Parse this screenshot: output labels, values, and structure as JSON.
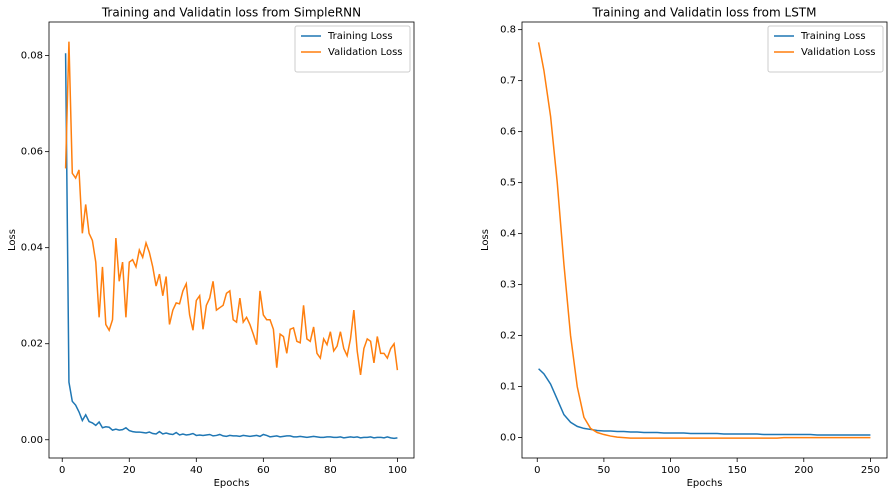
{
  "chart_data": [
    {
      "type": "line",
      "title": "Training and Validatin loss from SimpleRNN",
      "xlabel": "Epochs",
      "ylabel": "Loss",
      "x": [
        1,
        2,
        3,
        4,
        5,
        6,
        7,
        8,
        9,
        10,
        11,
        12,
        13,
        14,
        15,
        16,
        17,
        18,
        19,
        20,
        21,
        22,
        23,
        24,
        25,
        26,
        27,
        28,
        29,
        30,
        31,
        32,
        33,
        34,
        35,
        36,
        37,
        38,
        39,
        40,
        41,
        42,
        43,
        44,
        45,
        46,
        47,
        48,
        49,
        50,
        51,
        52,
        53,
        54,
        55,
        56,
        57,
        58,
        59,
        60,
        61,
        62,
        63,
        64,
        65,
        66,
        67,
        68,
        69,
        70,
        71,
        72,
        73,
        74,
        75,
        76,
        77,
        78,
        79,
        80,
        81,
        82,
        83,
        84,
        85,
        86,
        87,
        88,
        89,
        90,
        91,
        92,
        93,
        94,
        95,
        96,
        97,
        98,
        99,
        100
      ],
      "series": [
        {
          "name": "Training Loss",
          "color": "#1f77b4",
          "values": [
            0.0805,
            0.012,
            0.008,
            0.0072,
            0.0058,
            0.004,
            0.0052,
            0.0038,
            0.0035,
            0.003,
            0.0037,
            0.0025,
            0.0027,
            0.0026,
            0.002,
            0.0022,
            0.002,
            0.0021,
            0.0025,
            0.0019,
            0.0017,
            0.0016,
            0.0016,
            0.0015,
            0.0014,
            0.0016,
            0.0013,
            0.0012,
            0.0017,
            0.0012,
            0.0014,
            0.0012,
            0.0011,
            0.0015,
            0.001,
            0.0012,
            0.001,
            0.0011,
            0.0013,
            0.0009,
            0.001,
            0.0009,
            0.001,
            0.0011,
            0.0008,
            0.0009,
            0.0011,
            0.0008,
            0.0007,
            0.0009,
            0.0008,
            0.0008,
            0.0007,
            0.0009,
            0.0008,
            0.0007,
            0.0008,
            0.0009,
            0.0007,
            0.0011,
            0.0009,
            0.0006,
            0.0007,
            0.0008,
            0.0006,
            0.0007,
            0.0008,
            0.0008,
            0.0006,
            0.0006,
            0.0007,
            0.0006,
            0.0005,
            0.0006,
            0.0007,
            0.0006,
            0.0005,
            0.0005,
            0.0006,
            0.0006,
            0.0005,
            0.0005,
            0.0006,
            0.0004,
            0.0005,
            0.0006,
            0.0005,
            0.0006,
            0.0004,
            0.0005,
            0.0005,
            0.0006,
            0.0004,
            0.0005,
            0.0005,
            0.0004,
            0.0006,
            0.0004,
            0.0003,
            0.0004
          ]
        },
        {
          "name": "Validation Loss",
          "color": "#ff7f0e",
          "values": [
            0.0565,
            0.0829,
            0.0555,
            0.0545,
            0.0562,
            0.043,
            0.049,
            0.043,
            0.0415,
            0.037,
            0.0255,
            0.036,
            0.024,
            0.0228,
            0.025,
            0.042,
            0.033,
            0.037,
            0.0255,
            0.037,
            0.0375,
            0.036,
            0.0395,
            0.038,
            0.041,
            0.039,
            0.036,
            0.032,
            0.0345,
            0.03,
            0.034,
            0.024,
            0.027,
            0.0285,
            0.0283,
            0.031,
            0.0325,
            0.026,
            0.0228,
            0.029,
            0.03,
            0.023,
            0.028,
            0.0295,
            0.033,
            0.027,
            0.0275,
            0.028,
            0.0305,
            0.031,
            0.025,
            0.0245,
            0.0295,
            0.0245,
            0.0255,
            0.024,
            0.022,
            0.0198,
            0.031,
            0.026,
            0.025,
            0.025,
            0.023,
            0.015,
            0.022,
            0.0215,
            0.018,
            0.023,
            0.0233,
            0.0205,
            0.0202,
            0.028,
            0.021,
            0.0205,
            0.0235,
            0.018,
            0.017,
            0.021,
            0.0198,
            0.0225,
            0.0185,
            0.0195,
            0.0225,
            0.019,
            0.0175,
            0.021,
            0.027,
            0.0185,
            0.0135,
            0.019,
            0.021,
            0.0205,
            0.016,
            0.0215,
            0.018,
            0.018,
            0.017,
            0.019,
            0.02,
            0.0145
          ]
        }
      ],
      "xlim": [
        -3.95,
        104.95
      ],
      "ylim": [
        -0.0038,
        0.087
      ],
      "xticks": [
        0,
        20,
        40,
        60,
        80,
        100
      ],
      "yticks": [
        {
          "value": 0,
          "label": "0.00"
        },
        0.02,
        0.04,
        0.06,
        0.08
      ],
      "legend": "upper right"
    },
    {
      "type": "line",
      "title": "Training and Validatin loss from LSTM",
      "xlabel": "Epochs",
      "ylabel": "Loss",
      "x": [
        1,
        5,
        10,
        15,
        20,
        25,
        30,
        35,
        40,
        45,
        50,
        55,
        60,
        65,
        70,
        75,
        80,
        85,
        90,
        95,
        100,
        105,
        110,
        115,
        120,
        125,
        130,
        135,
        140,
        145,
        150,
        155,
        160,
        165,
        170,
        175,
        180,
        185,
        190,
        195,
        200,
        205,
        210,
        215,
        220,
        225,
        230,
        235,
        240,
        245,
        250
      ],
      "series": [
        {
          "name": "Training Loss",
          "color": "#1f77b4",
          "values": [
            0.135,
            0.125,
            0.105,
            0.075,
            0.045,
            0.03,
            0.022,
            0.018,
            0.016,
            0.014,
            0.013,
            0.013,
            0.012,
            0.012,
            0.011,
            0.011,
            0.01,
            0.01,
            0.01,
            0.009,
            0.009,
            0.009,
            0.009,
            0.008,
            0.008,
            0.008,
            0.008,
            0.008,
            0.007,
            0.007,
            0.007,
            0.007,
            0.007,
            0.007,
            0.006,
            0.006,
            0.006,
            0.006,
            0.006,
            0.006,
            0.006,
            0.006,
            0.005,
            0.005,
            0.005,
            0.005,
            0.005,
            0.005,
            0.005,
            0.005,
            0.005
          ]
        },
        {
          "name": "Validation Loss",
          "color": "#ff7f0e",
          "values": [
            0.775,
            0.72,
            0.63,
            0.5,
            0.34,
            0.2,
            0.1,
            0.04,
            0.018,
            0.01,
            0.006,
            0.003,
            0.001,
            0,
            -0.001,
            -0.001,
            -0.001,
            -0.001,
            -0.001,
            -0.001,
            -0.001,
            -0.001,
            -0.001,
            -0.001,
            -0.001,
            -0.001,
            -0.001,
            -0.001,
            -0.001,
            -0.001,
            -0.001,
            -0.001,
            -0.001,
            -0.001,
            -0.001,
            -0.001,
            -0.001,
            0,
            0,
            0,
            0,
            0,
            0,
            0,
            0,
            0,
            0,
            0,
            0,
            0,
            0
          ]
        }
      ],
      "xlim": [
        -11.45,
        262.45
      ],
      "ylim": [
        -0.04,
        0.815
      ],
      "xticks": [
        0,
        50,
        100,
        150,
        200,
        250
      ],
      "yticks": [
        {
          "value": 0,
          "label": "0.0"
        },
        0.1,
        0.2,
        0.3,
        0.4,
        0.5,
        0.6,
        0.7,
        0.8
      ],
      "legend": "upper right"
    }
  ]
}
